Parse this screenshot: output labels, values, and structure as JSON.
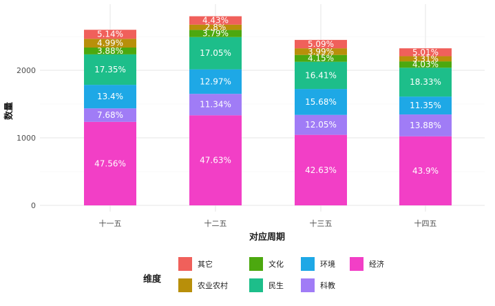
{
  "chart_data": {
    "type": "bar",
    "stacked": true,
    "xlabel": "对应周期",
    "ylabel": "数量",
    "categories": [
      "十一五",
      "十二五",
      "十三五",
      "十四五"
    ],
    "totals": [
      2600,
      2800,
      2450,
      2330
    ],
    "ylim": [
      0,
      2900
    ],
    "yticks": [
      0,
      1000,
      2000
    ],
    "grid": true,
    "legend": {
      "title": "维度",
      "position": "bottom"
    },
    "series": [
      {
        "name": "经济",
        "color": "#F23FC6",
        "percent": [
          47.56,
          47.63,
          42.63,
          43.9
        ]
      },
      {
        "name": "科教",
        "color": "#A07CF6",
        "percent": [
          7.68,
          11.34,
          12.05,
          13.88
        ]
      },
      {
        "name": "环境",
        "color": "#1EA8E6",
        "percent": [
          13.4,
          12.97,
          15.68,
          11.35
        ]
      },
      {
        "name": "民生",
        "color": "#1DBE8A",
        "percent": [
          17.35,
          17.05,
          16.41,
          18.33
        ]
      },
      {
        "name": "文化",
        "color": "#4CA80F",
        "percent": [
          3.88,
          3.79,
          4.15,
          4.03
        ]
      },
      {
        "name": "农业农村",
        "color": "#B88F0A",
        "percent": [
          4.99,
          2.8,
          3.99,
          3.31
        ]
      },
      {
        "name": "其它",
        "color": "#F0605B",
        "percent": [
          5.14,
          4.43,
          5.09,
          5.01
        ]
      }
    ],
    "legend_order": [
      "其它",
      "文化",
      "环境",
      "经济",
      "农业农村",
      "民生",
      "科教"
    ]
  }
}
